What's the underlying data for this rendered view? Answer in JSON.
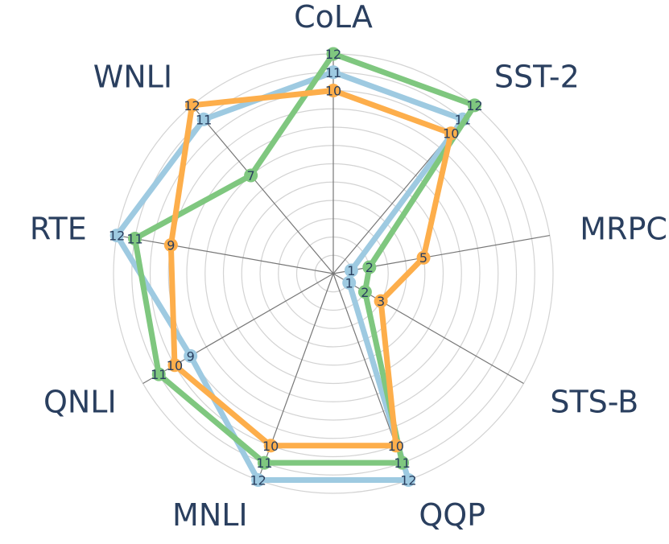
{
  "chart_data": {
    "type": "radar",
    "categories": [
      "CoLA",
      "SST-2",
      "MRPC",
      "STS-B",
      "QQP",
      "MNLI",
      "QNLI",
      "RTE",
      "WNLI"
    ],
    "rlim": [
      0,
      12
    ],
    "grid": true,
    "series": [
      {
        "values": [
          11,
          11,
          1,
          1,
          12,
          12,
          9,
          12,
          11
        ],
        "color": "#9ecae1"
      },
      {
        "values": [
          12,
          12,
          2,
          2,
          11,
          11,
          11,
          11,
          7
        ],
        "color": "#7fc77f"
      },
      {
        "values": [
          10,
          10,
          5,
          3,
          10,
          10,
          10,
          9,
          12
        ],
        "color": "#fdae4b"
      }
    ]
  }
}
